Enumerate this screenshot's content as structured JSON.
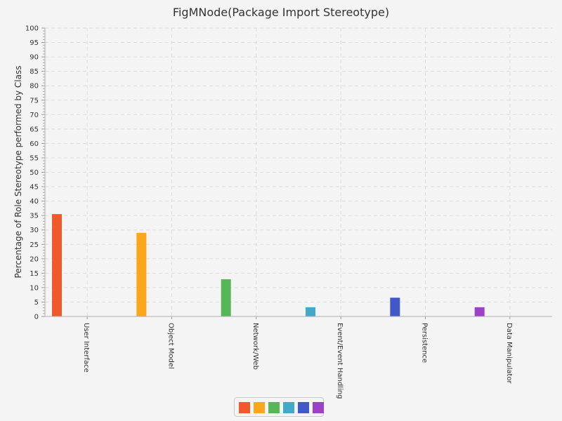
{
  "chart_data": {
    "type": "bar",
    "title": "FigMNode(Package Import Stereotype)",
    "ylabel": "Percentage of Role Stereotype performed by Class",
    "xlabel": "",
    "ylim": [
      0,
      100
    ],
    "ytick_step": 5,
    "grid": true,
    "legend_position": "bottom",
    "categories": [
      "User Interface",
      "Object Model",
      "Network/Web",
      "Event/Event Handling",
      "Persistence",
      "Data Manipulator"
    ],
    "values": [
      35.5,
      29.0,
      12.9,
      3.2,
      6.5,
      3.2
    ],
    "colors": [
      "#f0592b",
      "#fba71b",
      "#57b757",
      "#41a9c9",
      "#4258c9",
      "#9a42c8"
    ]
  }
}
